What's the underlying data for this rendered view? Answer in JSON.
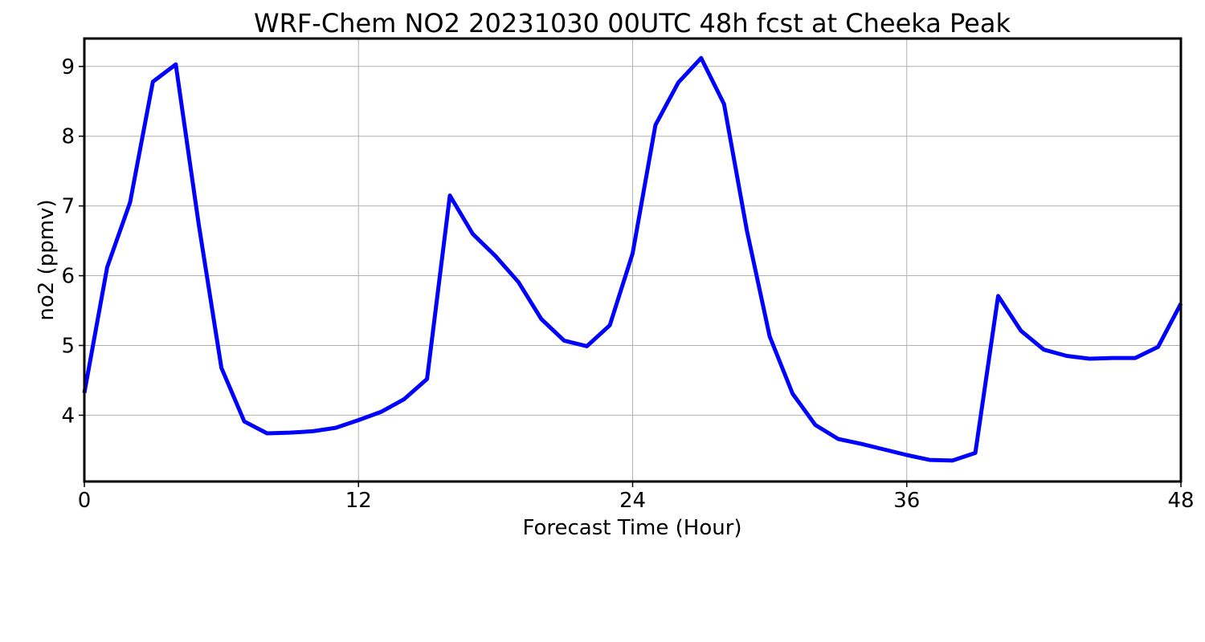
{
  "chart_data": {
    "type": "line",
    "title": "WRF-Chem NO2  20231030 00UTC 48h fcst at Cheeka Peak",
    "xlabel": "Forecast Time (Hour)",
    "ylabel": "no2  (ppmv)",
    "xlim": [
      0,
      48
    ],
    "ylim": [
      3.05,
      9.4
    ],
    "xticks": [
      0,
      12,
      24,
      36,
      48
    ],
    "yticks": [
      4,
      5,
      6,
      7,
      8,
      9
    ],
    "grid": true,
    "line_color": "#0000ff",
    "series": [
      {
        "x": [
          0,
          1,
          2,
          3,
          4,
          5,
          6,
          7,
          8,
          9,
          10,
          11,
          12,
          13,
          14,
          15,
          16,
          17,
          18,
          19,
          20,
          21,
          22,
          23,
          24,
          25,
          26,
          27,
          28,
          29,
          30,
          31,
          32,
          33,
          34,
          35,
          36,
          37,
          38,
          39,
          40,
          41,
          42,
          43,
          44,
          45,
          46,
          47,
          48
        ],
        "values": [
          4.32,
          6.12,
          7.05,
          8.78,
          9.03,
          6.75,
          4.68,
          3.91,
          3.74,
          3.75,
          3.77,
          3.82,
          3.93,
          4.05,
          4.23,
          4.52,
          7.15,
          6.6,
          6.28,
          5.91,
          5.38,
          5.07,
          4.99,
          5.29,
          6.32,
          8.16,
          8.77,
          9.12,
          8.46,
          6.65,
          5.13,
          4.31,
          3.86,
          3.66,
          3.59,
          3.51,
          3.43,
          3.36,
          3.35,
          3.46,
          5.71,
          5.21,
          4.94,
          4.85,
          4.81,
          4.82,
          4.82,
          4.98,
          5.6
        ]
      }
    ]
  }
}
